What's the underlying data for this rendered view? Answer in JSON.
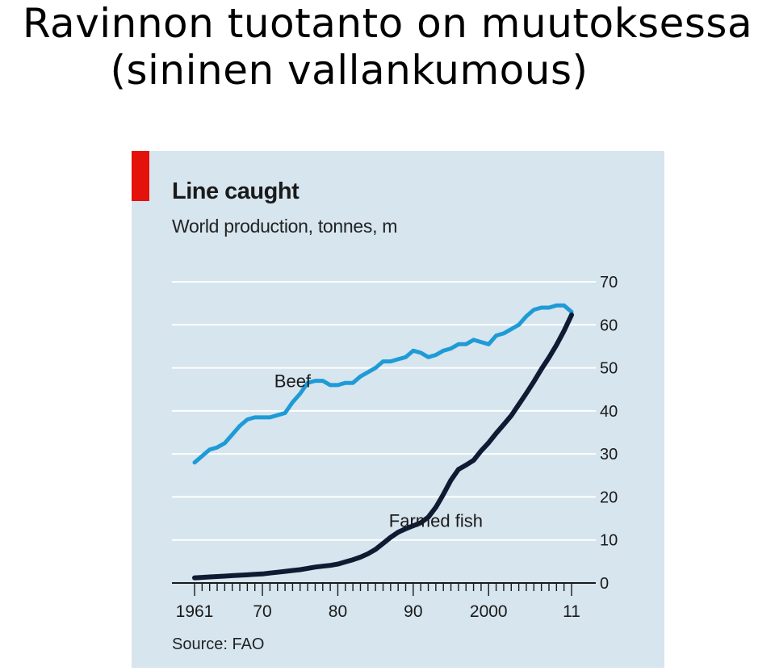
{
  "slide": {
    "title_line1": "Ravinnon tuotanto on muutoksessa",
    "title_line2": "(sininen vallankumous)"
  },
  "chart_data": {
    "type": "line",
    "title": "Line caught",
    "subtitle": "World production, tonnes, m",
    "source": "Source: FAO",
    "xlim": [
      1961,
      2011
    ],
    "ylim": [
      0,
      70
    ],
    "x_tick_labels": [
      {
        "x": 1961,
        "label": "1961"
      },
      {
        "x": 1970,
        "label": "70"
      },
      {
        "x": 1980,
        "label": "80"
      },
      {
        "x": 1990,
        "label": "90"
      },
      {
        "x": 2000,
        "label": "2000"
      },
      {
        "x": 2011,
        "label": "11"
      }
    ],
    "y_ticks": [
      0,
      10,
      20,
      30,
      40,
      50,
      60,
      70
    ],
    "y_axis_position": "right",
    "grid": true,
    "colors": {
      "background": "#d6e5ee",
      "grid": "#ffffff",
      "accent": "#e3120b"
    },
    "series": [
      {
        "name": "Beef",
        "color": "#1e9bd7",
        "label_at": {
          "x": 1974,
          "y": 45.5
        },
        "x": [
          1961,
          1962,
          1963,
          1964,
          1965,
          1966,
          1967,
          1968,
          1969,
          1970,
          1971,
          1972,
          1973,
          1974,
          1975,
          1976,
          1977,
          1978,
          1979,
          1980,
          1981,
          1982,
          1983,
          1984,
          1985,
          1986,
          1987,
          1988,
          1989,
          1990,
          1991,
          1992,
          1993,
          1994,
          1995,
          1996,
          1997,
          1998,
          1999,
          2000,
          2001,
          2002,
          2003,
          2004,
          2005,
          2006,
          2007,
          2008,
          2009,
          2010,
          2011
        ],
        "values": [
          28,
          29.5,
          31,
          31.5,
          32.5,
          34.5,
          36.5,
          38,
          38.5,
          38.5,
          38.5,
          39,
          39.5,
          42,
          44,
          46.5,
          47,
          47,
          46,
          46,
          46.5,
          46.5,
          48,
          49,
          50,
          51.5,
          51.5,
          52,
          52.5,
          54,
          53.5,
          52.5,
          53,
          54,
          54.5,
          55.5,
          55.5,
          56.5,
          56,
          55.5,
          57.5,
          58,
          59,
          60,
          62,
          63.5,
          64,
          64,
          64.5,
          64.5,
          63
        ]
      },
      {
        "name": "Farmed fish",
        "color": "#0f1b33",
        "label_at": {
          "x": 1993,
          "y": 13
        },
        "x": [
          1961,
          1962,
          1963,
          1964,
          1965,
          1966,
          1967,
          1968,
          1969,
          1970,
          1971,
          1972,
          1973,
          1974,
          1975,
          1976,
          1977,
          1978,
          1979,
          1980,
          1981,
          1982,
          1983,
          1984,
          1985,
          1986,
          1987,
          1988,
          1989,
          1990,
          1991,
          1992,
          1993,
          1994,
          1995,
          1996,
          1997,
          1998,
          1999,
          2000,
          2001,
          2002,
          2003,
          2004,
          2005,
          2006,
          2007,
          2008,
          2009,
          2010,
          2011
        ],
        "values": [
          1.2,
          1.3,
          1.4,
          1.5,
          1.6,
          1.7,
          1.8,
          1.9,
          2.0,
          2.1,
          2.3,
          2.5,
          2.7,
          2.9,
          3.1,
          3.4,
          3.7,
          3.9,
          4.1,
          4.4,
          4.9,
          5.4,
          6.0,
          6.8,
          7.8,
          9.2,
          10.6,
          11.8,
          12.6,
          13.3,
          14.0,
          15.3,
          17.6,
          20.6,
          23.9,
          26.4,
          27.4,
          28.5,
          30.7,
          32.6,
          34.8,
          36.8,
          38.9,
          41.5,
          44.1,
          46.8,
          49.7,
          52.4,
          55.3,
          58.6,
          62.3
        ]
      }
    ]
  }
}
